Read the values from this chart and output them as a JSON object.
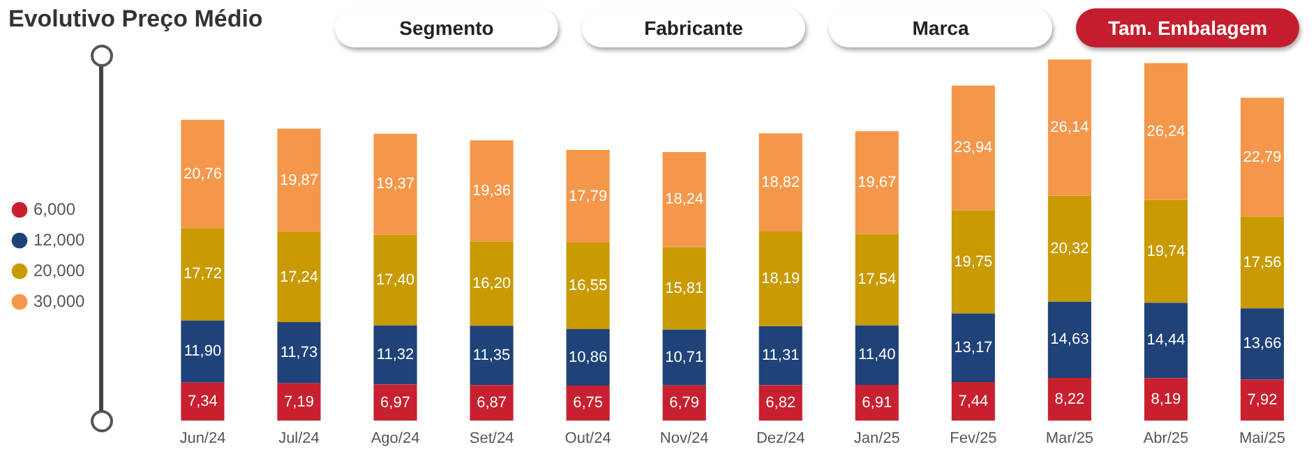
{
  "chart_data": {
    "type": "bar",
    "title": "Evolutivo Preço Médio",
    "stacked": true,
    "legend": "left",
    "grid": false,
    "categories": [
      "Jun/24",
      "Jul/24",
      "Ago/24",
      "Set/24",
      "Out/24",
      "Nov/24",
      "Dez/24",
      "Jan/25",
      "Fev/25",
      "Mar/25",
      "Abr/25",
      "Mai/25"
    ],
    "series": [
      {
        "name": "6,000",
        "color": "#c8202f",
        "values": [
          7.34,
          7.19,
          6.97,
          6.87,
          6.75,
          6.79,
          6.82,
          6.91,
          7.44,
          8.22,
          8.19,
          7.92
        ],
        "value_labels": [
          "7,34",
          "7,19",
          "6,97",
          "6,87",
          "6,75",
          "6,79",
          "6,82",
          "6,91",
          "7,44",
          "8,22",
          "8,19",
          "7,92"
        ]
      },
      {
        "name": "12,000",
        "color": "#1f4278",
        "values": [
          11.9,
          11.73,
          11.32,
          11.35,
          10.86,
          10.71,
          11.31,
          11.4,
          13.17,
          14.63,
          14.44,
          13.66
        ],
        "value_labels": [
          "11,90",
          "11,73",
          "11,32",
          "11,35",
          "10,86",
          "10,71",
          "11,31",
          "11,40",
          "13,17",
          "14,63",
          "14,44",
          "13,66"
        ]
      },
      {
        "name": "20,000",
        "color": "#c99a02",
        "values": [
          17.72,
          17.24,
          17.4,
          16.2,
          16.55,
          15.81,
          18.19,
          17.54,
          19.75,
          20.32,
          19.74,
          17.56
        ],
        "value_labels": [
          "17,72",
          "17,24",
          "17,40",
          "16,20",
          "16,55",
          "15,81",
          "18,19",
          "17,54",
          "19,75",
          "20,32",
          "19,74",
          "17,56"
        ]
      },
      {
        "name": "30,000",
        "color": "#f5974a",
        "values": [
          20.76,
          19.87,
          19.37,
          19.36,
          17.79,
          18.24,
          18.82,
          19.67,
          23.94,
          26.14,
          26.24,
          22.79
        ],
        "value_labels": [
          "20,76",
          "19,87",
          "19,37",
          "19,36",
          "17,79",
          "18,24",
          "18,82",
          "19,67",
          "23,94",
          "26,14",
          "26,24",
          "22,79"
        ]
      }
    ],
    "annotations": [
      "Segmento",
      "Fabricante",
      "Marca",
      "Tam. Embalagem"
    ]
  }
}
